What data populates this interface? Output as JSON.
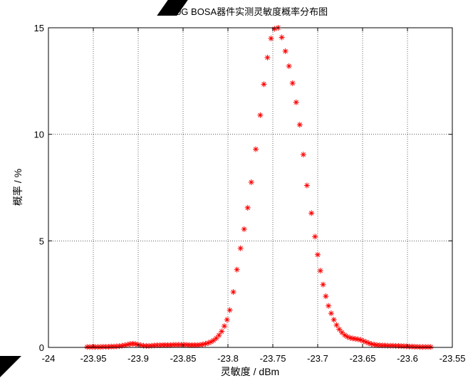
{
  "chart_data": {
    "type": "scatter",
    "title": "10G BOSA器件实测灵敏度概率分布图",
    "xlabel": "灵敏度 / dBm",
    "ylabel": "概率 / %",
    "xlim": [
      -24,
      -23.55
    ],
    "ylim": [
      0,
      15
    ],
    "xticks": [
      -24,
      -23.95,
      -23.9,
      -23.85,
      -23.8,
      -23.75,
      -23.7,
      -23.65,
      -23.6,
      -23.55
    ],
    "xtick_labels": [
      "-24",
      "-23.95",
      "-23.9",
      "-23.85",
      "-23.8",
      "-23.75",
      "-23.7",
      "-23.65",
      "-23.6",
      "-23.55"
    ],
    "yticks": [
      0,
      5,
      10,
      15
    ],
    "ytick_labels": [
      "0",
      "5",
      "10",
      "15"
    ],
    "grid": true,
    "marker": "*",
    "color": "#ff0000",
    "series": [
      {
        "points": [
          [
            -23.957,
            0.02
          ],
          [
            -23.954,
            0.02
          ],
          [
            -23.951,
            0.02
          ],
          [
            -23.948,
            0.02
          ],
          [
            -23.945,
            0.02
          ],
          [
            -23.942,
            0.02
          ],
          [
            -23.939,
            0.03
          ],
          [
            -23.936,
            0.03
          ],
          [
            -23.933,
            0.03
          ],
          [
            -23.93,
            0.04
          ],
          [
            -23.927,
            0.04
          ],
          [
            -23.924,
            0.05
          ],
          [
            -23.921,
            0.06
          ],
          [
            -23.918,
            0.08
          ],
          [
            -23.915,
            0.1
          ],
          [
            -23.912,
            0.13
          ],
          [
            -23.909,
            0.16
          ],
          [
            -23.906,
            0.17
          ],
          [
            -23.903,
            0.16
          ],
          [
            -23.9,
            0.13
          ],
          [
            -23.897,
            0.1
          ],
          [
            -23.894,
            0.08
          ],
          [
            -23.891,
            0.07
          ],
          [
            -23.888,
            0.07
          ],
          [
            -23.885,
            0.08
          ],
          [
            -23.882,
            0.09
          ],
          [
            -23.879,
            0.1
          ],
          [
            -23.876,
            0.1
          ],
          [
            -23.873,
            0.11
          ],
          [
            -23.87,
            0.11
          ],
          [
            -23.867,
            0.11
          ],
          [
            -23.864,
            0.11
          ],
          [
            -23.861,
            0.12
          ],
          [
            -23.858,
            0.12
          ],
          [
            -23.855,
            0.12
          ],
          [
            -23.852,
            0.12
          ],
          [
            -23.849,
            0.12
          ],
          [
            -23.846,
            0.12
          ],
          [
            -23.843,
            0.11
          ],
          [
            -23.84,
            0.11
          ],
          [
            -23.837,
            0.11
          ],
          [
            -23.834,
            0.11
          ],
          [
            -23.831,
            0.12
          ],
          [
            -23.828,
            0.14
          ],
          [
            -23.825,
            0.17
          ],
          [
            -23.822,
            0.21
          ],
          [
            -23.819,
            0.26
          ],
          [
            -23.816,
            0.33
          ],
          [
            -23.813,
            0.43
          ],
          [
            -23.81,
            0.57
          ],
          [
            -23.807,
            0.75
          ],
          [
            -23.804,
            1.0
          ],
          [
            -23.801,
            1.3
          ],
          [
            -23.798,
            1.75
          ],
          [
            -23.794,
            2.6
          ],
          [
            -23.79,
            3.65
          ],
          [
            -23.786,
            4.65
          ],
          [
            -23.782,
            5.55
          ],
          [
            -23.778,
            6.55
          ],
          [
            -23.774,
            7.75
          ],
          [
            -23.769,
            9.3
          ],
          [
            -23.764,
            10.9
          ],
          [
            -23.76,
            12.35
          ],
          [
            -23.756,
            13.6
          ],
          [
            -23.752,
            14.5
          ],
          [
            -23.748,
            14.95
          ],
          [
            -23.744,
            15.0
          ],
          [
            -23.74,
            14.55
          ],
          [
            -23.736,
            13.9
          ],
          [
            -23.732,
            13.2
          ],
          [
            -23.728,
            12.4
          ],
          [
            -23.724,
            11.5
          ],
          [
            -23.72,
            10.45
          ],
          [
            -23.716,
            9.05
          ],
          [
            -23.712,
            7.6
          ],
          [
            -23.707,
            6.3
          ],
          [
            -23.703,
            5.2
          ],
          [
            -23.7,
            4.35
          ],
          [
            -23.697,
            3.6
          ],
          [
            -23.694,
            2.95
          ],
          [
            -23.691,
            2.4
          ],
          [
            -23.688,
            1.95
          ],
          [
            -23.685,
            1.6
          ],
          [
            -23.682,
            1.3
          ],
          [
            -23.679,
            1.05
          ],
          [
            -23.676,
            0.85
          ],
          [
            -23.673,
            0.7
          ],
          [
            -23.67,
            0.58
          ],
          [
            -23.667,
            0.5
          ],
          [
            -23.664,
            0.45
          ],
          [
            -23.661,
            0.42
          ],
          [
            -23.658,
            0.4
          ],
          [
            -23.655,
            0.38
          ],
          [
            -23.652,
            0.35
          ],
          [
            -23.649,
            0.3
          ],
          [
            -23.646,
            0.25
          ],
          [
            -23.643,
            0.2
          ],
          [
            -23.64,
            0.16
          ],
          [
            -23.637,
            0.13
          ],
          [
            -23.634,
            0.11
          ],
          [
            -23.631,
            0.1
          ],
          [
            -23.628,
            0.09
          ],
          [
            -23.625,
            0.09
          ],
          [
            -23.622,
            0.08
          ],
          [
            -23.619,
            0.08
          ],
          [
            -23.616,
            0.08
          ],
          [
            -23.613,
            0.07
          ],
          [
            -23.61,
            0.07
          ],
          [
            -23.607,
            0.06
          ],
          [
            -23.604,
            0.06
          ],
          [
            -23.601,
            0.05
          ],
          [
            -23.598,
            0.04
          ],
          [
            -23.595,
            0.04
          ],
          [
            -23.592,
            0.03
          ],
          [
            -23.589,
            0.03
          ],
          [
            -23.586,
            0.02
          ],
          [
            -23.583,
            0.02
          ],
          [
            -23.58,
            0.02
          ],
          [
            -23.577,
            0.02
          ],
          [
            -23.574,
            0.02
          ]
        ]
      }
    ]
  }
}
